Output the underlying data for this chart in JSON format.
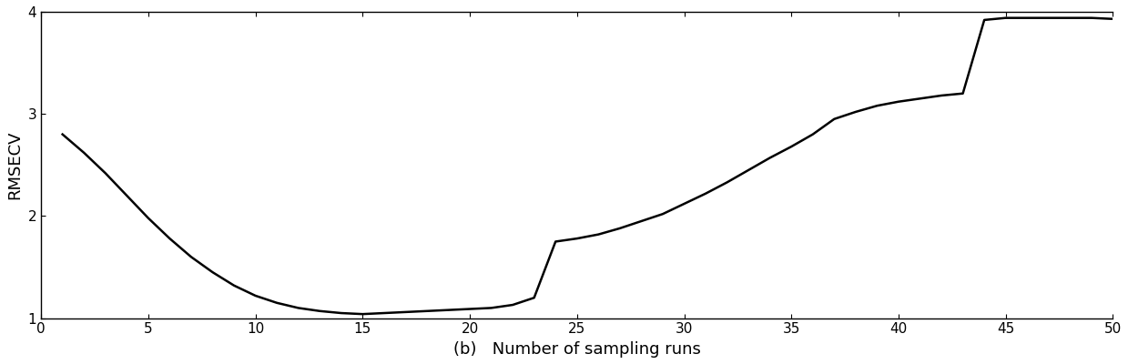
{
  "title": "",
  "xlabel": "(b)   Number of sampling runs",
  "ylabel": "RMSECV",
  "xlim": [
    0,
    50
  ],
  "ylim": [
    1,
    4
  ],
  "xticks": [
    0,
    5,
    10,
    15,
    20,
    25,
    30,
    35,
    40,
    45,
    50
  ],
  "yticks": [
    1,
    2,
    3,
    4
  ],
  "line_color": "#000000",
  "line_width": 1.8,
  "background_color": "#ffffff",
  "x": [
    1,
    2,
    3,
    4,
    5,
    6,
    7,
    8,
    9,
    10,
    11,
    12,
    13,
    14,
    15,
    16,
    17,
    18,
    19,
    20,
    21,
    22,
    23,
    24,
    25,
    26,
    27,
    28,
    29,
    30,
    31,
    32,
    33,
    34,
    35,
    36,
    37,
    38,
    39,
    40,
    41,
    42,
    43,
    44,
    45,
    46,
    47,
    48,
    49,
    50
  ],
  "y": [
    2.8,
    2.62,
    2.42,
    2.2,
    1.98,
    1.78,
    1.6,
    1.45,
    1.32,
    1.22,
    1.15,
    1.1,
    1.07,
    1.05,
    1.04,
    1.05,
    1.06,
    1.07,
    1.08,
    1.09,
    1.1,
    1.13,
    1.2,
    1.75,
    1.78,
    1.82,
    1.88,
    1.95,
    2.02,
    2.12,
    2.22,
    2.33,
    2.45,
    2.57,
    2.68,
    2.8,
    2.95,
    3.02,
    3.08,
    3.12,
    3.15,
    3.18,
    3.2,
    3.92,
    3.94,
    3.94,
    3.94,
    3.94,
    3.94,
    3.93
  ]
}
